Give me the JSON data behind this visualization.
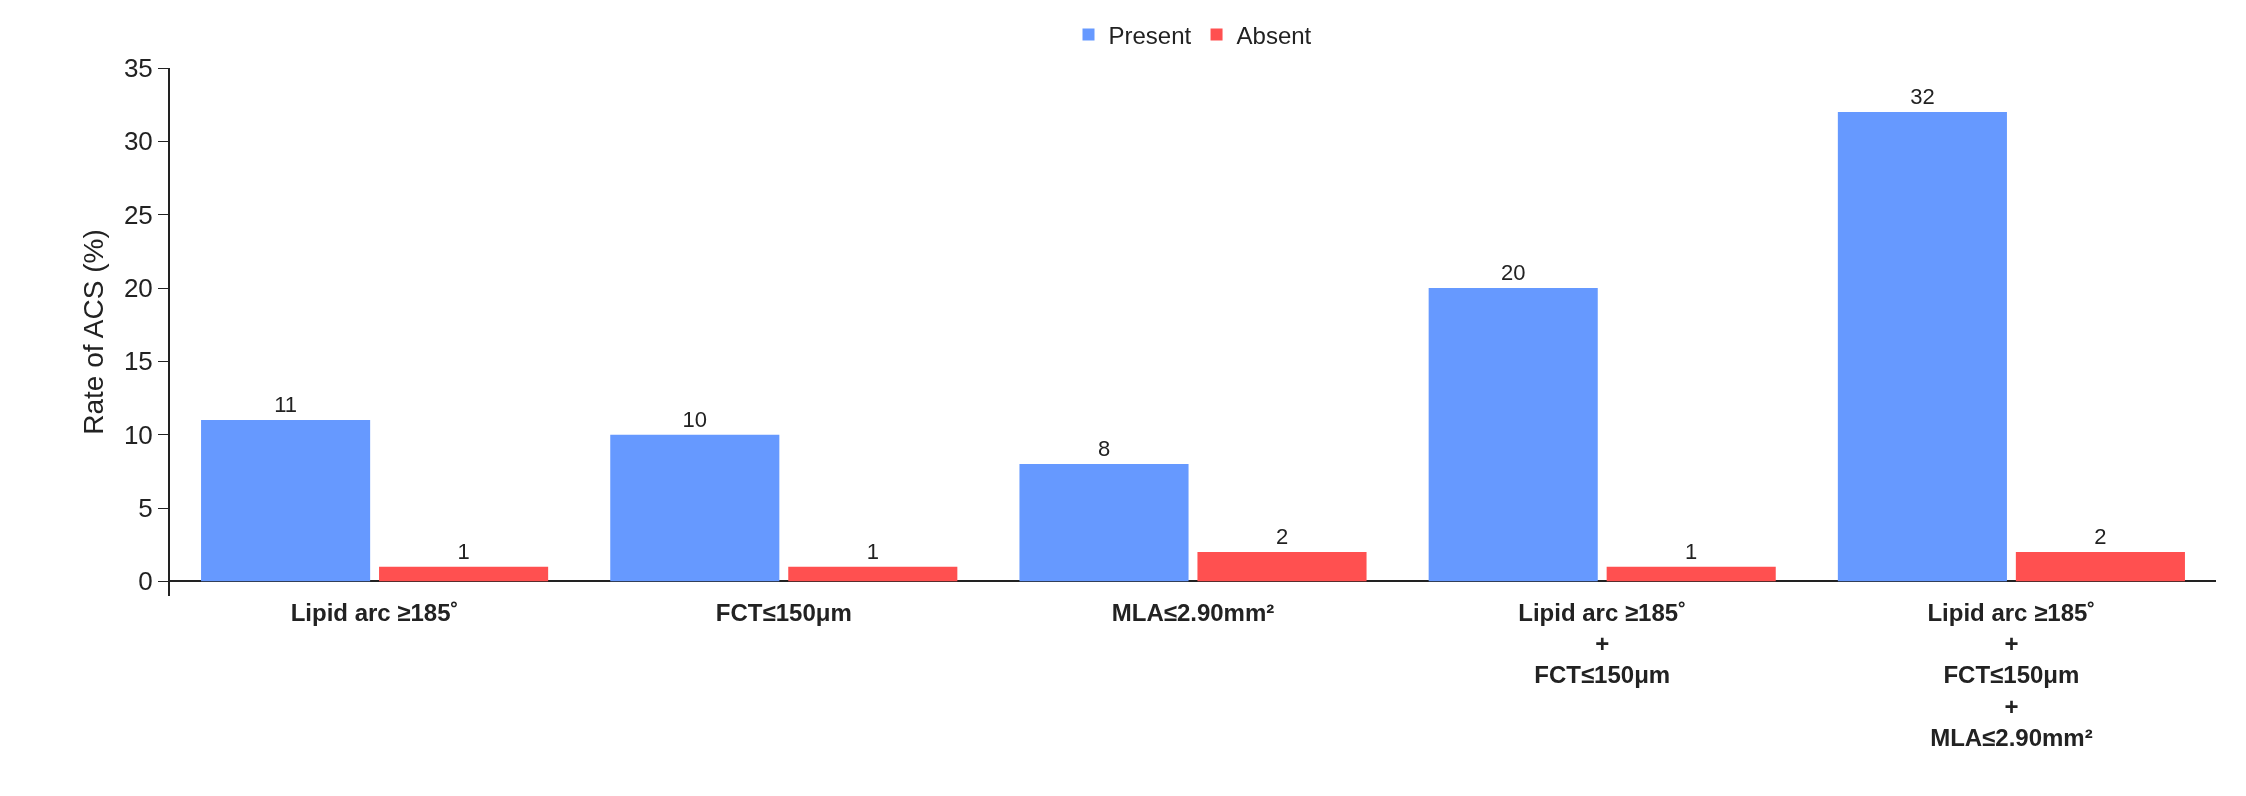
{
  "chart_data": {
    "type": "bar",
    "ylabel": "Rate of ACS (%)",
    "categories": [
      "Lipid arc ≥185˚",
      "FCT≤150μm",
      "MLA≤2.90mm²",
      "Lipid arc ≥185˚\n+\nFCT≤150μm",
      "Lipid arc ≥185˚\n+\nFCT≤150μm\n+\nMLA≤2.90mm²"
    ],
    "series": [
      {
        "name": "Present",
        "color": "#6699ff",
        "values": [
          11,
          10,
          8,
          20,
          32
        ]
      },
      {
        "name": "Absent",
        "color": "#ff5050",
        "values": [
          1,
          1,
          2,
          1,
          2
        ]
      }
    ],
    "ylim": [
      -1,
      35
    ],
    "yticks": [
      0,
      5,
      10,
      15,
      20,
      25,
      30,
      35
    ],
    "grid": false,
    "legend": "top",
    "data_labels": true
  }
}
